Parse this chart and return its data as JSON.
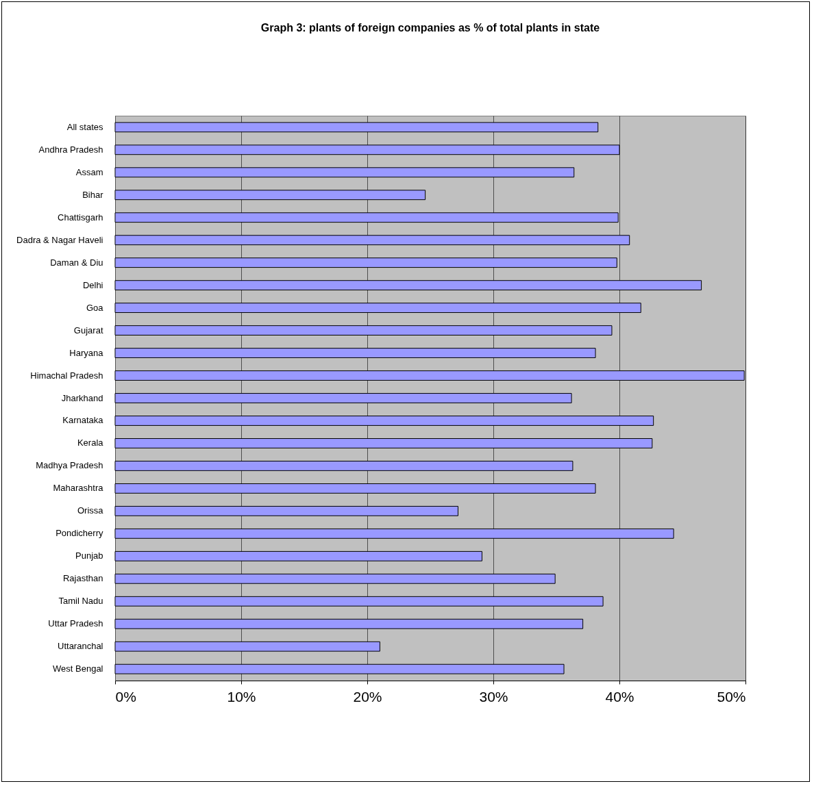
{
  "chart_data": {
    "type": "bar",
    "orientation": "horizontal",
    "title": "Graph 3: plants of foreign companies as % of total plants in  state",
    "categories": [
      "All states",
      "Andhra Pradesh",
      "Assam",
      "Bihar",
      "Chattisgarh",
      "Dadra & Nagar Haveli",
      "Daman & Diu",
      "Delhi",
      "Goa",
      "Gujarat",
      "Haryana",
      "Himachal Pradesh",
      "Jharkhand",
      "Karnataka",
      "Kerala",
      "Madhya Pradesh",
      "Maharashtra",
      "Orissa",
      "Pondicherry",
      "Punjab",
      "Rajasthan",
      "Tamil Nadu",
      "Uttar Pradesh",
      "Uttaranchal",
      "West Bengal"
    ],
    "values": [
      38.3,
      40.0,
      36.4,
      24.6,
      39.9,
      40.8,
      39.8,
      46.5,
      41.7,
      39.4,
      38.1,
      49.9,
      36.2,
      42.7,
      42.6,
      36.3,
      38.1,
      27.2,
      44.3,
      29.1,
      34.9,
      38.7,
      37.1,
      21.0,
      35.6
    ],
    "color": "#9999ff",
    "xlim": [
      0,
      50
    ],
    "xticks": [
      {
        "value": 0,
        "label": "0%"
      },
      {
        "value": 10,
        "label": "10%"
      },
      {
        "value": 20,
        "label": "20%"
      },
      {
        "value": 30,
        "label": "30%"
      },
      {
        "value": 40,
        "label": "40%"
      },
      {
        "value": 50,
        "label": "50%"
      }
    ],
    "grid": "x"
  }
}
